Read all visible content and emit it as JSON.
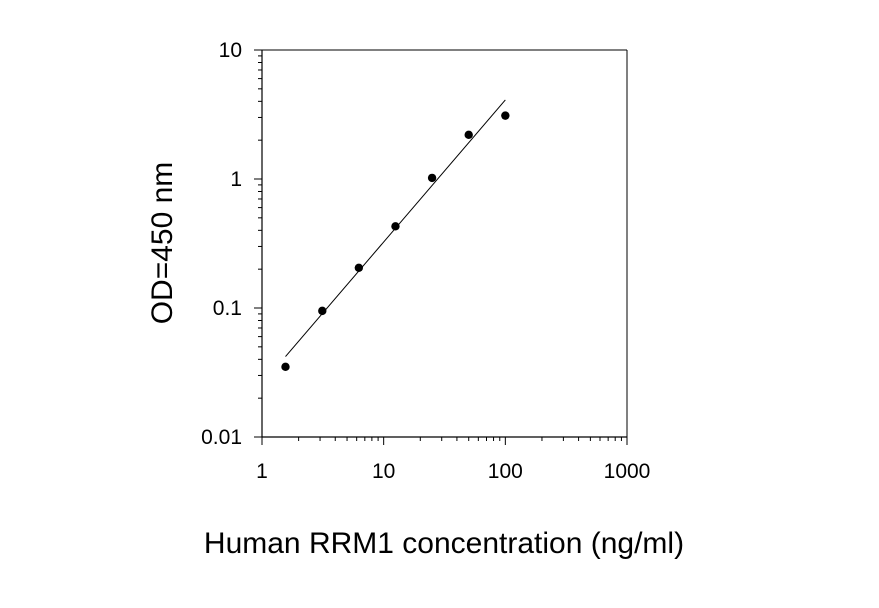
{
  "chart_data": {
    "type": "scatter",
    "title": "",
    "xlabel": "Human RRM1 concentration (ng/ml)",
    "ylabel": "OD=450 nm",
    "xscale": "log",
    "yscale": "log",
    "xlim": [
      1,
      1000
    ],
    "ylim": [
      0.01,
      10
    ],
    "x_ticks": [
      1,
      10,
      100,
      1000
    ],
    "x_tick_labels": [
      "1",
      "10",
      "100",
      "1000"
    ],
    "y_ticks": [
      0.01,
      0.1,
      1,
      10
    ],
    "y_tick_labels": [
      "0.01",
      "0.1",
      "1",
      "10"
    ],
    "grid": false,
    "legend": "none",
    "series": [
      {
        "x": [
          1.56,
          3.13,
          6.25,
          12.5,
          25,
          50,
          100
        ],
        "y": [
          0.035,
          0.095,
          0.205,
          0.43,
          1.02,
          2.2,
          3.1
        ]
      }
    ],
    "fit_line": {
      "x": [
        1.56,
        100
      ],
      "y": [
        0.042,
        4.1
      ]
    },
    "colors": {
      "points": "#000000",
      "line": "#000000",
      "axes": "#000000"
    }
  }
}
